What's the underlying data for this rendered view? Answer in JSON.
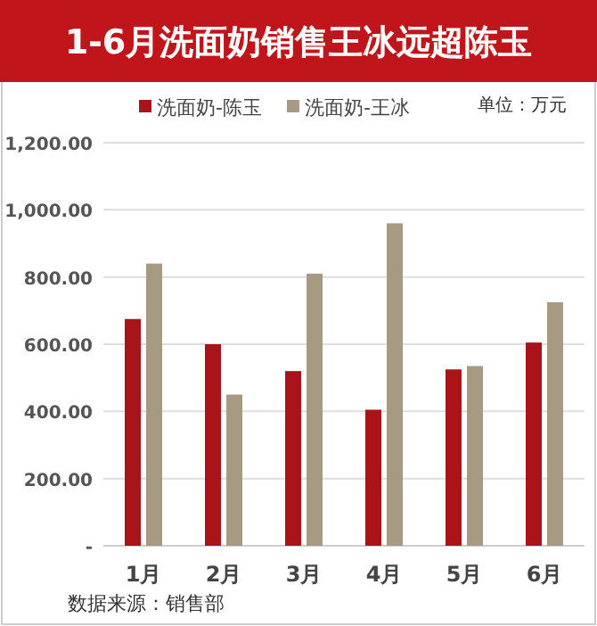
{
  "chart_data": {
    "type": "bar",
    "title": "1-6月洗面奶销售王冰远超陈玉",
    "categories": [
      "1月",
      "2月",
      "3月",
      "4月",
      "5月",
      "6月"
    ],
    "series": [
      {
        "name": "洗面奶-陈玉",
        "color": "#a81419",
        "values": [
          675,
          600,
          520,
          405,
          525,
          605
        ]
      },
      {
        "name": "洗面奶-王冰",
        "color": "#a69a82",
        "values": [
          840,
          450,
          810,
          960,
          535,
          725
        ]
      }
    ],
    "ylim": [
      0,
      1200
    ],
    "yticks": [
      {
        "value": 0,
        "label": "-"
      },
      {
        "value": 200,
        "label": "200.00"
      },
      {
        "value": 400,
        "label": "400.00"
      },
      {
        "value": 600,
        "label": "600.00"
      },
      {
        "value": 800,
        "label": "800.00"
      },
      {
        "value": 1000,
        "label": "1,000.00"
      },
      {
        "value": 1200,
        "label": "1,200.00"
      }
    ],
    "grid": "y",
    "legend": "top",
    "annotations": [
      "单位：万元",
      "数据来源：销售部"
    ]
  }
}
